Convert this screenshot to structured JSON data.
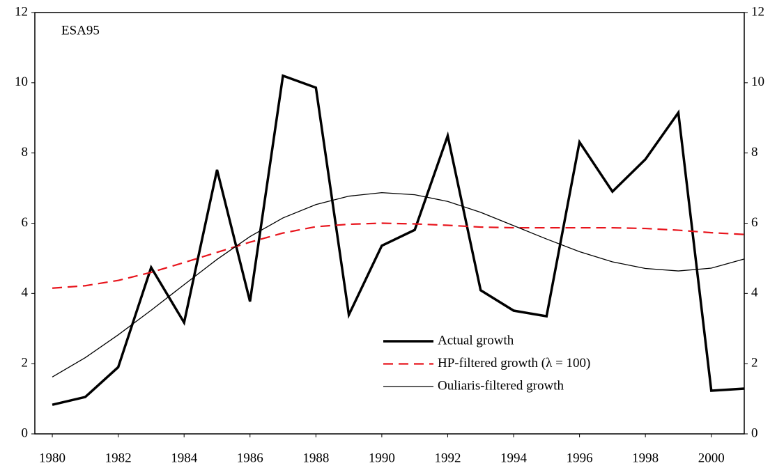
{
  "chart_data": {
    "type": "line",
    "annotation": "ESA95",
    "x": [
      1980,
      1981,
      1982,
      1983,
      1984,
      1985,
      1986,
      1987,
      1988,
      1989,
      1990,
      1991,
      1992,
      1993,
      1994,
      1995,
      1996,
      1997,
      1998,
      1999,
      2000,
      2001
    ],
    "series": [
      {
        "name": "Actual growth",
        "color": "#000000",
        "line_width": 3.5,
        "dashed": false,
        "values": [
          0.83,
          1.05,
          1.9,
          4.74,
          3.17,
          7.52,
          3.77,
          10.2,
          9.86,
          3.39,
          5.36,
          5.81,
          8.49,
          4.09,
          3.51,
          3.35,
          8.31,
          6.9,
          7.82,
          9.15,
          1.23,
          1.29
        ]
      },
      {
        "name": "HP-filtered growth (λ = 100)",
        "color": "#e8141c",
        "line_width": 2.2,
        "dashed": true,
        "values": [
          4.15,
          4.22,
          4.37,
          4.6,
          4.88,
          5.17,
          5.46,
          5.72,
          5.9,
          5.97,
          6.0,
          5.98,
          5.94,
          5.89,
          5.87,
          5.87,
          5.87,
          5.87,
          5.85,
          5.8,
          5.73,
          5.68
        ]
      },
      {
        "name": "Ouliaris-filtered growth",
        "color": "#000000",
        "line_width": 1.3,
        "dashed": false,
        "values": [
          1.62,
          2.17,
          2.82,
          3.52,
          4.25,
          4.97,
          5.62,
          6.15,
          6.53,
          6.77,
          6.87,
          6.81,
          6.62,
          6.31,
          5.93,
          5.55,
          5.19,
          4.9,
          4.71,
          4.64,
          4.72,
          4.98
        ]
      }
    ],
    "xlim": [
      1979.47,
      2001.0
    ],
    "xticks": [
      1980,
      1982,
      1984,
      1986,
      1988,
      1990,
      1992,
      1994,
      1996,
      1998,
      2000
    ],
    "ylim": [
      0,
      12
    ],
    "yticks": [
      0,
      2,
      4,
      6,
      8,
      10,
      12
    ],
    "y2lim": [
      0,
      12
    ],
    "y2ticks": [
      0,
      2,
      4,
      6,
      8,
      10,
      12
    ],
    "grid": false,
    "legend": "lower center"
  }
}
